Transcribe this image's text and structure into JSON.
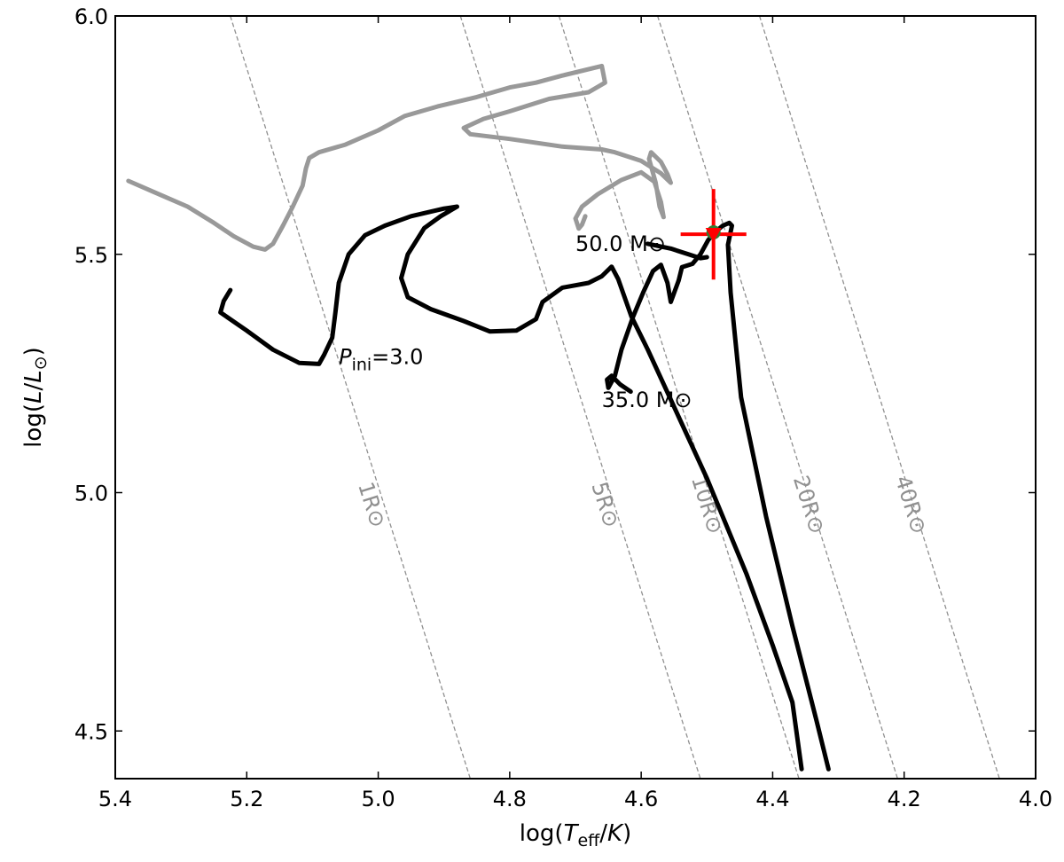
{
  "chart_data": {
    "type": "line",
    "xlim": [
      5.4,
      4.0
    ],
    "ylim": [
      4.4,
      6.0
    ],
    "x_inverted": true,
    "xticks": [
      5.4,
      5.2,
      5.0,
      4.8,
      4.6,
      4.4,
      4.2,
      4.0
    ],
    "xtick_labels": [
      "5.4",
      "5.2",
      "5.0",
      "4.8",
      "4.6",
      "4.4",
      "4.2",
      "4.0"
    ],
    "yticks": [
      4.5,
      5.0,
      5.5,
      6.0
    ],
    "ytick_labels": [
      "4.5",
      "5.0",
      "5.5",
      "6.0"
    ],
    "xlabel": {
      "pre": "log(",
      "sym": "T",
      "sub": "eff",
      "post": "/",
      "unit": "K",
      "close": ")"
    },
    "ylabel": {
      "pre": "log(",
      "sym": "L",
      "post": "/",
      "unit": "L",
      "sub": "⊙",
      "close": ")"
    },
    "grid": false,
    "colors": {
      "primary": "#000000",
      "secondary": "#999999",
      "iso": "#909090",
      "marker": "#ff0000",
      "dot": "#2e7d32"
    },
    "radius_lines": [
      {
        "radius": 1,
        "label": "1R⊙",
        "label_at": [
          5.02,
          4.97
        ],
        "points": [
          [
            5.225,
            6.0
          ],
          [
            4.86,
            4.4
          ]
        ]
      },
      {
        "radius": 5,
        "label": "5R⊙",
        "label_at": [
          4.665,
          4.97
        ],
        "points": [
          [
            4.875,
            6.0
          ],
          [
            4.51,
            4.4
          ]
        ]
      },
      {
        "radius": 10,
        "label": "10R⊙",
        "label_at": [
          4.51,
          4.97
        ],
        "points": [
          [
            4.725,
            6.0
          ],
          [
            4.36,
            4.4
          ]
        ]
      },
      {
        "radius": 20,
        "label": "20R⊙",
        "label_at": [
          4.355,
          4.97
        ],
        "points": [
          [
            4.575,
            6.0
          ],
          [
            4.21,
            4.4
          ]
        ]
      },
      {
        "radius": 40,
        "label": "40R⊙",
        "label_at": [
          4.2,
          4.97
        ],
        "points": [
          [
            4.42,
            6.0
          ],
          [
            4.055,
            4.4
          ]
        ]
      }
    ],
    "series": [
      {
        "color": "#999999",
        "points": [
          [
            5.38,
            5.654
          ],
          [
            5.34,
            5.63
          ],
          [
            5.29,
            5.6
          ],
          [
            5.25,
            5.566
          ],
          [
            5.22,
            5.538
          ],
          [
            5.19,
            5.516
          ],
          [
            5.172,
            5.51
          ],
          [
            5.16,
            5.522
          ],
          [
            5.145,
            5.56
          ],
          [
            5.13,
            5.6
          ],
          [
            5.115,
            5.644
          ],
          [
            5.11,
            5.68
          ],
          [
            5.105,
            5.702
          ],
          [
            5.09,
            5.714
          ],
          [
            5.05,
            5.73
          ],
          [
            5.0,
            5.76
          ],
          [
            4.96,
            5.79
          ],
          [
            4.91,
            5.81
          ],
          [
            4.85,
            5.83
          ],
          [
            4.8,
            5.85
          ],
          [
            4.76,
            5.86
          ],
          [
            4.72,
            5.875
          ],
          [
            4.66,
            5.895
          ],
          [
            4.655,
            5.86
          ],
          [
            4.68,
            5.84
          ],
          [
            4.74,
            5.826
          ],
          [
            4.8,
            5.8
          ],
          [
            4.84,
            5.784
          ],
          [
            4.87,
            5.765
          ],
          [
            4.86,
            5.752
          ],
          [
            4.8,
            5.742
          ],
          [
            4.72,
            5.726
          ],
          [
            4.66,
            5.72
          ],
          [
            4.64,
            5.714
          ],
          [
            4.6,
            5.696
          ],
          [
            4.57,
            5.67
          ],
          [
            4.555,
            5.65
          ],
          [
            4.56,
            5.668
          ],
          [
            4.57,
            5.694
          ],
          [
            4.585,
            5.714
          ],
          [
            4.588,
            5.7
          ],
          [
            4.578,
            5.65
          ],
          [
            4.572,
            5.6
          ],
          [
            4.566,
            5.578
          ],
          [
            4.57,
            5.61
          ],
          [
            4.58,
            5.652
          ],
          [
            4.6,
            5.672
          ],
          [
            4.63,
            5.656
          ],
          [
            4.666,
            5.626
          ],
          [
            4.69,
            5.6
          ],
          [
            4.7,
            5.575
          ],
          [
            4.695,
            5.554
          ],
          [
            4.69,
            5.562
          ],
          [
            4.685,
            5.58
          ]
        ]
      },
      {
        "color": "#000000",
        "points": [
          [
            5.225,
            5.425
          ],
          [
            5.235,
            5.402
          ],
          [
            5.24,
            5.378
          ],
          [
            5.2,
            5.34
          ],
          [
            5.16,
            5.3
          ],
          [
            5.12,
            5.272
          ],
          [
            5.09,
            5.27
          ],
          [
            5.082,
            5.29
          ],
          [
            5.07,
            5.325
          ],
          [
            5.065,
            5.38
          ],
          [
            5.06,
            5.44
          ],
          [
            5.045,
            5.5
          ],
          [
            5.02,
            5.54
          ],
          [
            4.99,
            5.56
          ],
          [
            4.95,
            5.58
          ],
          [
            4.9,
            5.596
          ],
          [
            4.88,
            5.6
          ],
          [
            4.905,
            5.58
          ],
          [
            4.93,
            5.555
          ],
          [
            4.955,
            5.5
          ],
          [
            4.965,
            5.45
          ],
          [
            4.955,
            5.41
          ],
          [
            4.92,
            5.385
          ],
          [
            4.87,
            5.36
          ],
          [
            4.83,
            5.338
          ],
          [
            4.79,
            5.34
          ],
          [
            4.76,
            5.364
          ],
          [
            4.75,
            5.4
          ],
          [
            4.72,
            5.43
          ],
          [
            4.68,
            5.44
          ],
          [
            4.66,
            5.454
          ],
          [
            4.645,
            5.474
          ],
          [
            4.635,
            5.448
          ],
          [
            4.615,
            5.37
          ],
          [
            4.59,
            5.3
          ],
          [
            4.56,
            5.21
          ],
          [
            4.5,
            5.03
          ],
          [
            4.44,
            4.83
          ],
          [
            4.4,
            4.68
          ],
          [
            4.37,
            4.56
          ],
          [
            4.356,
            4.42
          ]
        ]
      },
      {
        "color": "#000000",
        "points": [
          [
            4.616,
            5.212
          ],
          [
            4.632,
            5.227
          ],
          [
            4.645,
            5.245
          ],
          [
            4.652,
            5.237
          ],
          [
            4.65,
            5.22
          ],
          [
            4.64,
            5.245
          ],
          [
            4.63,
            5.3
          ],
          [
            4.612,
            5.37
          ],
          [
            4.597,
            5.42
          ],
          [
            4.582,
            5.465
          ],
          [
            4.57,
            5.478
          ],
          [
            4.56,
            5.44
          ],
          [
            4.555,
            5.4
          ],
          [
            4.543,
            5.445
          ],
          [
            4.538,
            5.473
          ],
          [
            4.522,
            5.48
          ],
          [
            4.51,
            5.5
          ],
          [
            4.498,
            5.53
          ],
          [
            4.488,
            5.546
          ],
          [
            4.476,
            5.56
          ],
          [
            4.466,
            5.566
          ],
          [
            4.462,
            5.56
          ],
          [
            4.468,
            5.52
          ],
          [
            4.464,
            5.42
          ],
          [
            4.448,
            5.2
          ],
          [
            4.41,
            4.95
          ],
          [
            4.37,
            4.72
          ],
          [
            4.333,
            4.52
          ],
          [
            4.315,
            4.42
          ]
        ]
      },
      {
        "color": "#000000",
        "points": [
          [
            4.59,
            5.522
          ],
          [
            4.555,
            5.512
          ],
          [
            4.528,
            5.5
          ],
          [
            4.51,
            5.492
          ],
          [
            4.5,
            5.494
          ]
        ]
      }
    ],
    "markers": [
      {
        "type": "errorbar",
        "x": 4.49,
        "y": 5.542,
        "xerr": 0.05,
        "yerr": 0.095,
        "color": "#ff0000"
      },
      {
        "type": "dot",
        "x": 4.49,
        "y": 5.546,
        "color": "#2e7d32"
      },
      {
        "type": "triangle-down",
        "x": 4.49,
        "y": 5.542,
        "color": "#ff0000"
      }
    ],
    "annotations": [
      {
        "text": "50.0 M⊙",
        "x": 4.7,
        "y": 5.507
      },
      {
        "text": "35.0 M⊙",
        "x": 4.66,
        "y": 5.18
      },
      {
        "sym": "P",
        "sub": "ini",
        "val": "=3.0",
        "x": 5.06,
        "y": 5.27
      }
    ]
  }
}
